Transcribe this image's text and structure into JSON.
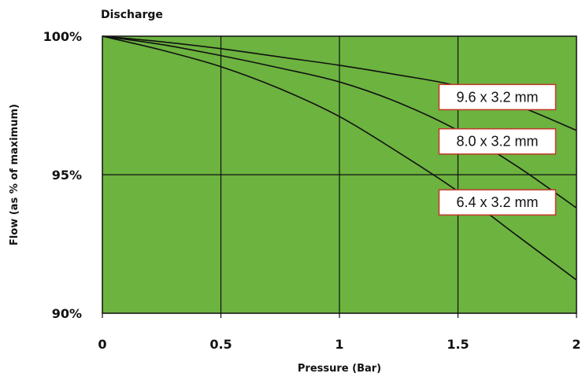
{
  "chart_data": {
    "type": "line",
    "title": "Discharge",
    "xlabel": "Pressure (Bar)",
    "ylabel": "Flow (as % of maximum)",
    "x_ticks": [
      "0",
      "0.5",
      "1",
      "1.5",
      "2"
    ],
    "y_ticks": [
      "90%",
      "95%",
      "100%"
    ],
    "xlim": [
      0,
      2
    ],
    "ylim": [
      90,
      100
    ],
    "grid": true,
    "colors": {
      "plot_bg": "#6cb33f",
      "line": "#111111",
      "label_border": "#c0392b"
    },
    "series": [
      {
        "name": "9.6 x 3.2 mm",
        "x": [
          0,
          0.25,
          0.5,
          0.75,
          1.0,
          1.25,
          1.5,
          1.75,
          2.0
        ],
        "y": [
          100.0,
          99.8,
          99.55,
          99.25,
          98.95,
          98.6,
          98.2,
          97.5,
          96.6
        ]
      },
      {
        "name": "8.0 x 3.2 mm",
        "x": [
          0,
          0.25,
          0.5,
          0.75,
          1.0,
          1.25,
          1.5,
          1.75,
          2.0
        ],
        "y": [
          100.0,
          99.7,
          99.3,
          98.85,
          98.35,
          97.6,
          96.6,
          95.3,
          93.8
        ]
      },
      {
        "name": "6.4 x 3.2 mm",
        "x": [
          0,
          0.25,
          0.5,
          0.75,
          1.0,
          1.25,
          1.5,
          1.75,
          2.0
        ],
        "y": [
          100.0,
          99.5,
          98.9,
          98.1,
          97.1,
          95.8,
          94.4,
          92.8,
          91.2
        ]
      }
    ]
  }
}
